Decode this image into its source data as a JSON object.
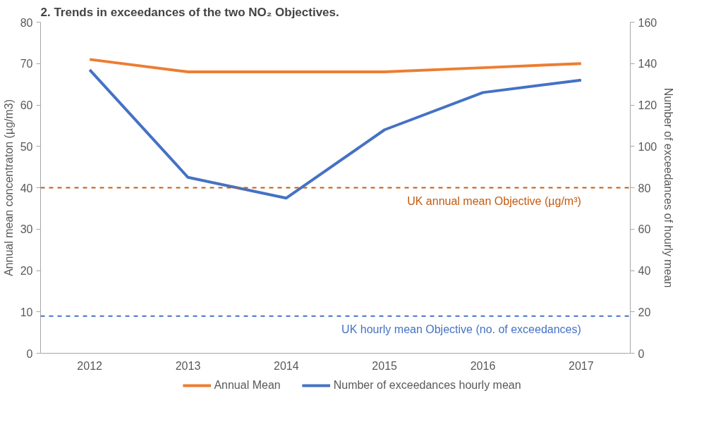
{
  "chart_data": {
    "type": "line",
    "title": "2. Trends in exceedances of the two NO₂ Objectives.",
    "ylabel": "Annual mean concentraton (µg/m3)",
    "y2label": "Number of exceedances of hourly mean",
    "categories": [
      "2012",
      "2013",
      "2014",
      "2015",
      "2016",
      "2017"
    ],
    "series": [
      {
        "name": "Annual Mean",
        "color": "#ed7d31",
        "values": [
          71,
          68,
          68,
          68,
          69,
          70
        ]
      },
      {
        "name": "Number of exceedances hourly mean",
        "color": "#4472c4",
        "axis": "y2",
        "values": [
          137,
          85,
          75,
          108,
          126,
          132
        ]
      }
    ],
    "ylim": [
      0,
      80
    ],
    "yticks": [
      0,
      10,
      20,
      30,
      40,
      50,
      60,
      70,
      80
    ],
    "y2lim": [
      0,
      160
    ],
    "y2ticks": [
      0,
      20,
      40,
      60,
      80,
      100,
      120,
      140,
      160
    ],
    "ref_lines": [
      {
        "axis": "y",
        "value": 40,
        "label": "UK annual mean Objective (µg/m³)",
        "color": "#c55a11",
        "line_style": "dashed"
      },
      {
        "axis": "y2",
        "value": 18,
        "label": "UK hourly mean Objective (no. of exceedances)",
        "color": "#4472c4",
        "line_style": "dashed"
      }
    ],
    "grid": false,
    "legend": "bottom",
    "marker": "none",
    "line_style": "solid"
  }
}
